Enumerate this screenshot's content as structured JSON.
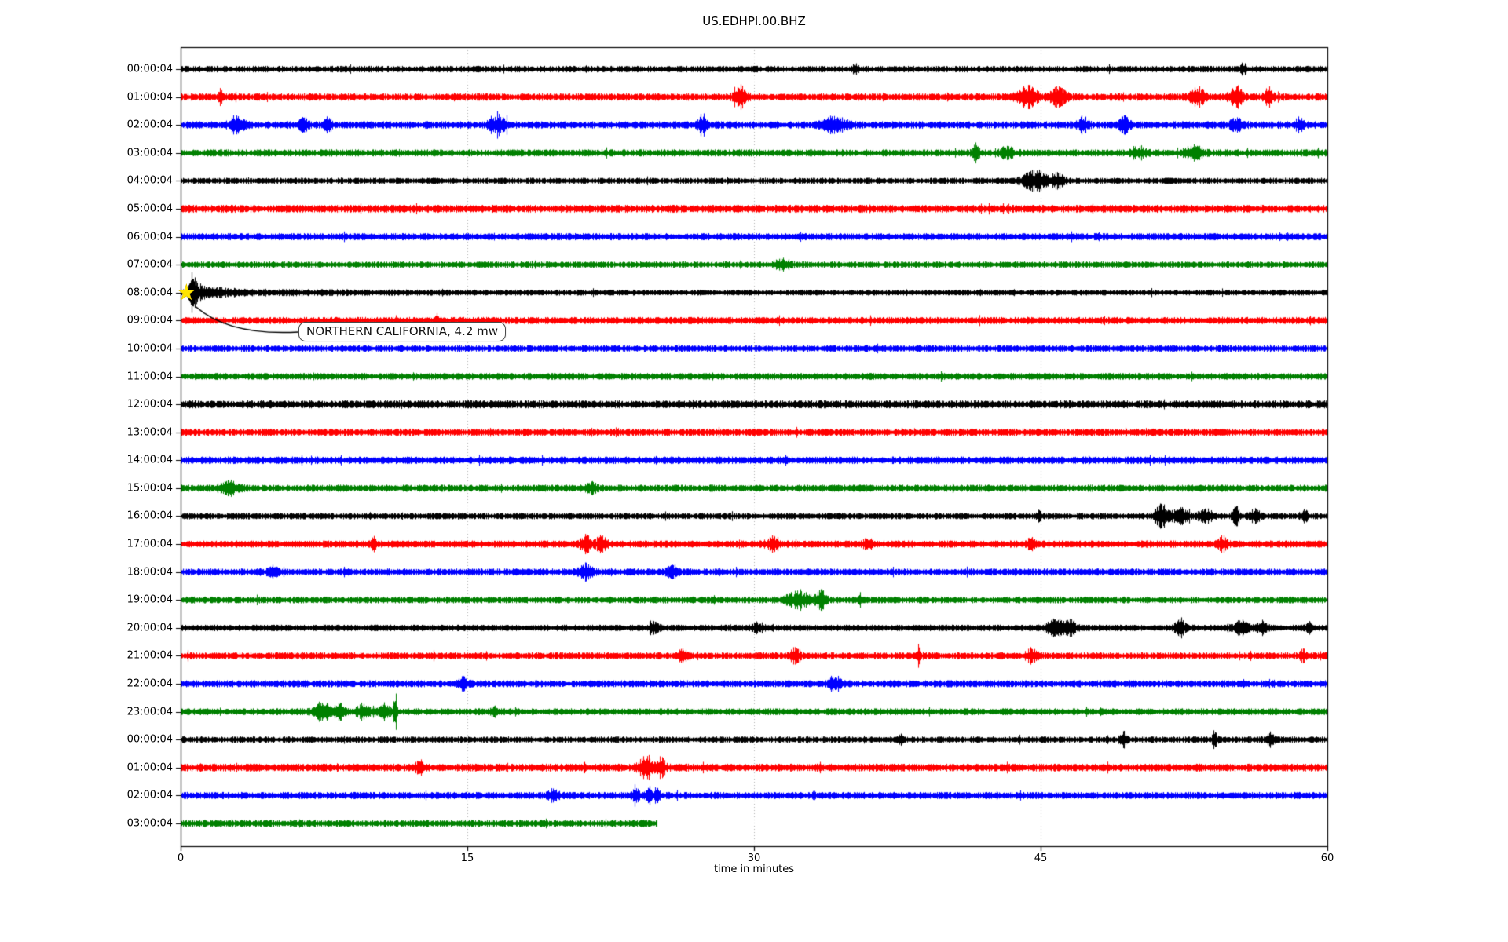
{
  "chart_data": {
    "type": "line",
    "subtype": "seismogram-helicorder-dayplot",
    "title": "US.EDHPI.00.BHZ",
    "xlabel": "time in minutes",
    "xlim": [
      0,
      60
    ],
    "x_ticks": [
      0,
      15,
      30,
      45,
      60
    ],
    "grid_x": [
      15,
      30,
      45
    ],
    "grid_style": "dotted-vertical",
    "legend": "none",
    "trace_palette": [
      "#000000",
      "#ff0000",
      "#0000ff",
      "#008000"
    ],
    "annotation": {
      "text": "NORTHERN CALIFORNIA, 4.2 mw",
      "row_label": "08:00:04",
      "row_index": 8,
      "t_min": 0.55,
      "marker": "star",
      "marker_color": "#ffe400"
    },
    "rows": [
      {
        "label": "00:00:04",
        "color": "#000000",
        "amp": 4.0,
        "end_min": 60,
        "events": [
          [
            35.3,
            1.6,
            0.12
          ],
          [
            55.6,
            1.4,
            0.1
          ]
        ]
      },
      {
        "label": "01:00:04",
        "color": "#ff0000",
        "amp": 4.6,
        "end_min": 60,
        "events": [
          [
            2.1,
            2.0,
            0.08
          ],
          [
            29.3,
            2.4,
            0.22
          ],
          [
            44.3,
            2.4,
            0.35
          ],
          [
            45.9,
            2.0,
            0.3
          ],
          [
            53.2,
            2.0,
            0.28
          ],
          [
            55.2,
            2.6,
            0.22
          ],
          [
            56.9,
            2.0,
            0.15
          ]
        ]
      },
      {
        "label": "02:00:04",
        "color": "#0000ff",
        "amp": 4.6,
        "end_min": 60,
        "events": [
          [
            2.9,
            2.0,
            0.25
          ],
          [
            6.4,
            1.6,
            0.18
          ],
          [
            7.7,
            1.5,
            0.15
          ],
          [
            16.6,
            2.2,
            0.3
          ],
          [
            27.3,
            2.3,
            0.18
          ],
          [
            34.2,
            1.7,
            0.45
          ],
          [
            47.2,
            1.8,
            0.18
          ],
          [
            49.4,
            2.0,
            0.18
          ],
          [
            55.2,
            1.8,
            0.18
          ],
          [
            58.5,
            1.4,
            0.15
          ]
        ]
      },
      {
        "label": "03:00:04",
        "color": "#008000",
        "amp": 4.4,
        "end_min": 60,
        "events": [
          [
            41.6,
            2.1,
            0.12
          ],
          [
            43.2,
            1.3,
            0.25
          ],
          [
            50.1,
            1.3,
            0.35
          ],
          [
            53.0,
            1.4,
            0.35
          ]
        ]
      },
      {
        "label": "04:00:04",
        "color": "#000000",
        "amp": 3.8,
        "end_min": 60,
        "events": [
          [
            44.7,
            3.0,
            0.45
          ],
          [
            45.9,
            2.1,
            0.25
          ]
        ]
      },
      {
        "label": "05:00:04",
        "color": "#ff0000",
        "amp": 4.8,
        "end_min": 60,
        "events": []
      },
      {
        "label": "06:00:04",
        "color": "#0000ff",
        "amp": 4.4,
        "end_min": 60,
        "events": []
      },
      {
        "label": "07:00:04",
        "color": "#008000",
        "amp": 4.0,
        "end_min": 60,
        "events": [
          [
            31.5,
            1.2,
            0.3
          ]
        ]
      },
      {
        "label": "08:00:04",
        "color": "#000000",
        "amp": 3.6,
        "end_min": 60,
        "events": [],
        "mainshock": {
          "t0": 0.55,
          "spike_amp": 4.2,
          "spike_w": 0.16,
          "decay_amp": 2.8,
          "decay_tau": 0.9,
          "coda_amp": 0.55,
          "coda_tau": 6.0
        }
      },
      {
        "label": "09:00:04",
        "color": "#ff0000",
        "amp": 4.4,
        "end_min": 60,
        "events": [
          [
            13.4,
            1.3,
            0.1
          ]
        ]
      },
      {
        "label": "10:00:04",
        "color": "#0000ff",
        "amp": 4.2,
        "end_min": 60,
        "events": []
      },
      {
        "label": "11:00:04",
        "color": "#008000",
        "amp": 4.2,
        "end_min": 60,
        "events": []
      },
      {
        "label": "12:00:04",
        "color": "#000000",
        "amp": 5.0,
        "end_min": 60,
        "events": []
      },
      {
        "label": "13:00:04",
        "color": "#ff0000",
        "amp": 4.6,
        "end_min": 60,
        "events": []
      },
      {
        "label": "14:00:04",
        "color": "#0000ff",
        "amp": 4.6,
        "end_min": 60,
        "events": []
      },
      {
        "label": "15:00:04",
        "color": "#008000",
        "amp": 4.4,
        "end_min": 60,
        "events": [
          [
            2.5,
            1.5,
            0.35
          ],
          [
            21.5,
            1.4,
            0.18
          ]
        ]
      },
      {
        "label": "16:00:04",
        "color": "#000000",
        "amp": 4.0,
        "end_min": 60,
        "events": [
          [
            44.9,
            1.4,
            0.1
          ],
          [
            51.3,
            3.1,
            0.25
          ],
          [
            52.3,
            2.1,
            0.28
          ],
          [
            53.6,
            1.6,
            0.28
          ],
          [
            55.2,
            3.0,
            0.12
          ],
          [
            56.2,
            1.5,
            0.2
          ],
          [
            58.8,
            1.6,
            0.1
          ]
        ]
      },
      {
        "label": "17:00:04",
        "color": "#ff0000",
        "amp": 4.4,
        "end_min": 60,
        "events": [
          [
            10.1,
            1.9,
            0.08
          ],
          [
            21.2,
            1.9,
            0.22
          ],
          [
            22.0,
            2.0,
            0.18
          ],
          [
            31.0,
            1.6,
            0.25
          ],
          [
            36.0,
            1.5,
            0.18
          ],
          [
            44.5,
            1.6,
            0.15
          ],
          [
            54.5,
            1.7,
            0.15
          ]
        ]
      },
      {
        "label": "18:00:04",
        "color": "#0000ff",
        "amp": 4.4,
        "end_min": 60,
        "events": [
          [
            4.8,
            1.4,
            0.18
          ],
          [
            21.2,
            1.7,
            0.25
          ],
          [
            25.7,
            1.6,
            0.18
          ]
        ]
      },
      {
        "label": "19:00:04",
        "color": "#008000",
        "amp": 4.2,
        "end_min": 60,
        "events": [
          [
            32.3,
            2.0,
            0.45
          ],
          [
            33.5,
            2.4,
            0.18
          ],
          [
            35.5,
            1.5,
            0.1
          ]
        ]
      },
      {
        "label": "20:00:04",
        "color": "#000000",
        "amp": 4.0,
        "end_min": 60,
        "events": [
          [
            24.7,
            1.6,
            0.18
          ],
          [
            30.2,
            1.5,
            0.18
          ],
          [
            45.8,
            2.2,
            0.35
          ],
          [
            46.6,
            1.8,
            0.2
          ],
          [
            52.3,
            2.4,
            0.18
          ],
          [
            55.5,
            1.7,
            0.28
          ],
          [
            56.6,
            1.7,
            0.18
          ],
          [
            59.0,
            1.4,
            0.1
          ]
        ]
      },
      {
        "label": "21:00:04",
        "color": "#ff0000",
        "amp": 4.4,
        "end_min": 60,
        "events": [
          [
            26.3,
            1.6,
            0.18
          ],
          [
            32.1,
            1.7,
            0.18
          ],
          [
            38.6,
            2.6,
            0.07
          ],
          [
            44.5,
            1.5,
            0.2
          ],
          [
            58.7,
            1.5,
            0.1
          ]
        ]
      },
      {
        "label": "22:00:04",
        "color": "#0000ff",
        "amp": 4.4,
        "end_min": 60,
        "events": [
          [
            14.8,
            1.3,
            0.18
          ],
          [
            34.2,
            1.8,
            0.22
          ]
        ]
      },
      {
        "label": "23:00:04",
        "color": "#008000",
        "amp": 4.2,
        "end_min": 60,
        "events": [
          [
            7.4,
            2.4,
            0.28
          ],
          [
            8.3,
            1.8,
            0.2
          ],
          [
            9.5,
            1.8,
            0.28
          ],
          [
            10.6,
            1.8,
            0.25
          ],
          [
            11.2,
            3.2,
            0.08
          ],
          [
            16.4,
            1.4,
            0.12
          ]
        ]
      },
      {
        "label": "00:00:04",
        "color": "#000000",
        "amp": 4.0,
        "end_min": 60,
        "events": [
          [
            37.6,
            1.4,
            0.1
          ],
          [
            49.3,
            2.0,
            0.12
          ],
          [
            54.1,
            1.6,
            0.1
          ],
          [
            57.0,
            1.6,
            0.15
          ]
        ]
      },
      {
        "label": "01:00:04",
        "color": "#ff0000",
        "amp": 4.8,
        "end_min": 60,
        "events": [
          [
            12.5,
            1.4,
            0.12
          ],
          [
            24.3,
            2.2,
            0.25
          ],
          [
            25.1,
            2.0,
            0.18
          ]
        ]
      },
      {
        "label": "02:00:04",
        "color": "#0000ff",
        "amp": 4.4,
        "end_min": 60,
        "events": [
          [
            19.5,
            1.5,
            0.18
          ],
          [
            23.8,
            2.3,
            0.12
          ],
          [
            24.5,
            2.0,
            0.12
          ],
          [
            24.9,
            1.8,
            0.1
          ]
        ]
      },
      {
        "label": "03:00:04",
        "color": "#008000",
        "amp": 4.4,
        "end_min": 24.9,
        "events": []
      }
    ]
  }
}
